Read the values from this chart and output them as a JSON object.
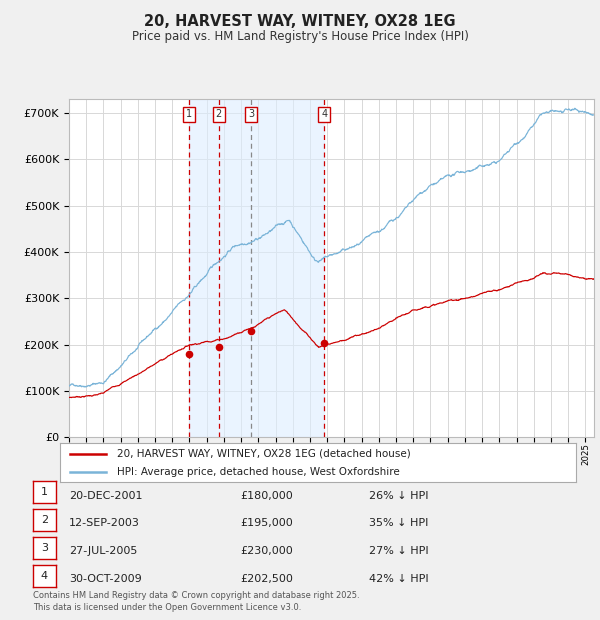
{
  "title": "20, HARVEST WAY, WITNEY, OX28 1EG",
  "subtitle": "Price paid vs. HM Land Registry's House Price Index (HPI)",
  "bg_color": "#f0f0f0",
  "chart_bg": "#ffffff",
  "grid_color": "#d8d8d8",
  "hpi_color": "#7ab4d8",
  "price_color": "#cc0000",
  "vline_red_color": "#cc0000",
  "vline_gray_color": "#888888",
  "shade_color": "#ddeeff",
  "shade_alpha": 0.6,
  "ylim": [
    0,
    730000
  ],
  "xlim_start": 1995.0,
  "xlim_end": 2025.5,
  "yticks": [
    0,
    100000,
    200000,
    300000,
    400000,
    500000,
    600000,
    700000
  ],
  "ytick_labels": [
    "£0",
    "£100K",
    "£200K",
    "£300K",
    "£400K",
    "£500K",
    "£600K",
    "£700K"
  ],
  "transactions": [
    {
      "label": "1",
      "x": 2001.97,
      "price": 180000,
      "vline_color": "red"
    },
    {
      "label": "2",
      "x": 2003.7,
      "price": 195000,
      "vline_color": "red"
    },
    {
      "label": "3",
      "x": 2005.57,
      "price": 230000,
      "vline_color": "gray"
    },
    {
      "label": "4",
      "x": 2009.83,
      "price": 202500,
      "vline_color": "red"
    }
  ],
  "legend_line1": "20, HARVEST WAY, WITNEY, OX28 1EG (detached house)",
  "legend_line2": "HPI: Average price, detached house, West Oxfordshire",
  "table_rows": [
    [
      "1",
      "20-DEC-2001",
      "£180,000",
      "26% ↓ HPI"
    ],
    [
      "2",
      "12-SEP-2003",
      "£195,000",
      "35% ↓ HPI"
    ],
    [
      "3",
      "27-JUL-2005",
      "£230,000",
      "27% ↓ HPI"
    ],
    [
      "4",
      "30-OCT-2009",
      "£202,500",
      "42% ↓ HPI"
    ]
  ],
  "footer_line1": "Contains HM Land Registry data © Crown copyright and database right 2025.",
  "footer_line2": "This data is licensed under the Open Government Licence v3.0."
}
